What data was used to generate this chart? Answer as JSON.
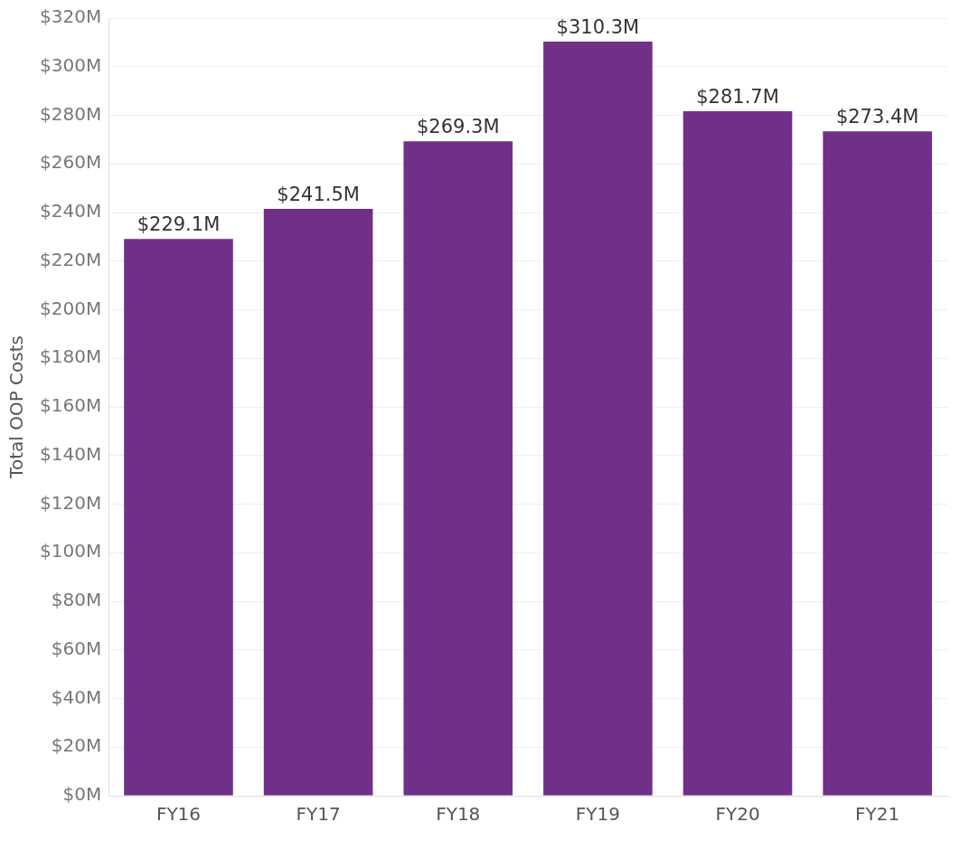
{
  "chart_data": {
    "type": "bar",
    "ylabel": "Total OOP Costs",
    "categories": [
      "FY16",
      "FY17",
      "FY18",
      "FY19",
      "FY20",
      "FY21"
    ],
    "values": [
      229.1,
      241.5,
      269.3,
      310.3,
      281.7,
      273.4
    ],
    "value_labels": [
      "$229.1M",
      "$241.5M",
      "$269.3M",
      "$310.3M",
      "$281.7M",
      "$273.4M"
    ],
    "color": "#703088",
    "ylim": [
      0,
      320
    ],
    "yticks": [
      {
        "value": 0,
        "label": "$0M"
      },
      {
        "value": 20,
        "label": "$20M"
      },
      {
        "value": 40,
        "label": "$40M"
      },
      {
        "value": 60,
        "label": "$60M"
      },
      {
        "value": 80,
        "label": "$80M"
      },
      {
        "value": 100,
        "label": "$100M"
      },
      {
        "value": 120,
        "label": "$120M"
      },
      {
        "value": 140,
        "label": "$140M"
      },
      {
        "value": 160,
        "label": "$160M"
      },
      {
        "value": 180,
        "label": "$180M"
      },
      {
        "value": 200,
        "label": "$200M"
      },
      {
        "value": 220,
        "label": "$220M"
      },
      {
        "value": 240,
        "label": "$240M"
      },
      {
        "value": 260,
        "label": "$260M"
      },
      {
        "value": 280,
        "label": "$280M"
      },
      {
        "value": 300,
        "label": "$300M"
      },
      {
        "value": 320,
        "label": "$320M"
      }
    ],
    "grid": "y",
    "legend": false
  }
}
